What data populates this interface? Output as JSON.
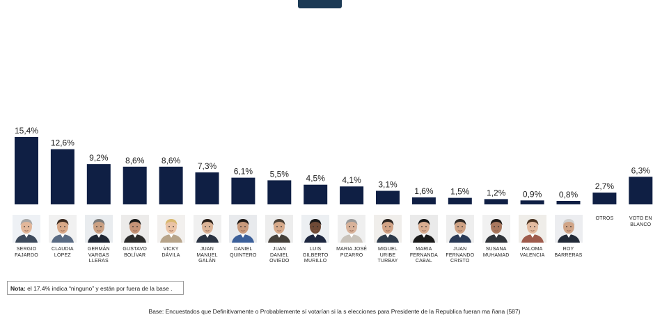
{
  "chart_data": {
    "type": "bar",
    "title": "",
    "xlabel": "",
    "ylabel": "",
    "ylim": [
      0,
      15.4
    ],
    "categories": [
      "SERGIO\nFAJARDO",
      "CLAUDIA\nLÓPEZ",
      "GERMÁN\nVARGAS\nLLERAS",
      "GUSTAVO\nBOLÍVAR",
      "VICKY\nDÁVILA",
      "JUAN\nMANUEL\nGALÁN",
      "DANIEL\nQUINTERO",
      "JUAN\nDANIEL\nOVIEDO",
      "LUIS\nGILBERTO\nMURILLO",
      "MARIA JOSÉ\nPIZARRO",
      "MIGUEL\nURIBE\nTURBAY",
      "MARIA\nFERNANDA\nCABAL",
      "JUAN\nFERNANDO\nCRISTO",
      "SUSANA\nMUHAMAD",
      "PALOMA\nVALENCIA",
      "ROY\nBARRERAS",
      "OTROS",
      "VOTO EN\nBLANCO"
    ],
    "values": [
      15.4,
      12.6,
      9.2,
      8.6,
      8.6,
      7.3,
      6.1,
      5.5,
      4.5,
      4.1,
      3.1,
      1.6,
      1.5,
      1.2,
      0.9,
      0.8,
      2.7,
      6.3
    ],
    "value_labels": [
      "15,4%",
      "12,6%",
      "9,2%",
      "8,6%",
      "8,6%",
      "7,3%",
      "6,1%",
      "5,5%",
      "4,5%",
      "4,1%",
      "3,1%",
      "1,6%",
      "1,5%",
      "1,2%",
      "0,9%",
      "0,8%",
      "2,7%",
      "6,3%"
    ],
    "has_portrait": [
      true,
      true,
      true,
      true,
      true,
      true,
      true,
      true,
      true,
      true,
      true,
      true,
      true,
      true,
      true,
      true,
      false,
      false
    ]
  },
  "colors": {
    "bar": "#0f1f44",
    "tab": "#1c3a55"
  },
  "note": {
    "bold": "Nota:",
    "text": " el 17.4% indica “ninguno” y están por fuera  de la base ."
  },
  "base": "Base: Encuestados que Definitivamente o Probablemente sí votarían si la s elecciones para Presidente de la Republica fueran ma ñana (587)"
}
